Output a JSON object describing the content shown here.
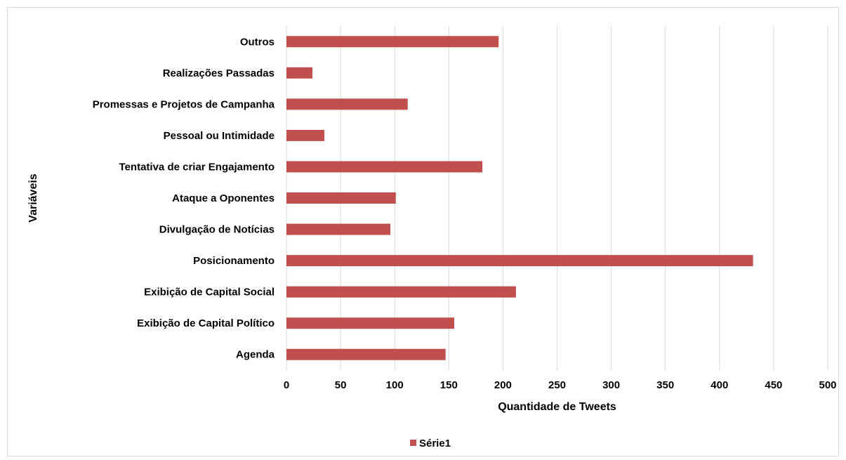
{
  "chart_data": {
    "type": "bar",
    "orientation": "horizontal",
    "categories": [
      "Outros",
      "Realizações Passadas",
      "Promessas e Projetos de Campanha",
      "Pessoal ou Intimidade",
      "Tentativa de criar Engajamento",
      "Ataque a Oponentes",
      "Divulgação de Notícias",
      "Posicionamento",
      "Exibição de Capital Social",
      "Exibição de Capital Político",
      "Agenda"
    ],
    "series": [
      {
        "name": "Série1",
        "color": "#c0504d",
        "values": [
          196,
          24,
          112,
          35,
          181,
          101,
          96,
          431,
          212,
          155,
          147
        ]
      }
    ],
    "xlabel": "Quantidade de Tweets",
    "ylabel": "Variáveis",
    "xlim": [
      0,
      500
    ],
    "xticks": [
      "0",
      "50",
      "100",
      "150",
      "200",
      "250",
      "300",
      "350",
      "400",
      "450",
      "500"
    ],
    "grid": "vertical",
    "legend_position": "bottom",
    "gridline_color": "#d9d9d9"
  }
}
